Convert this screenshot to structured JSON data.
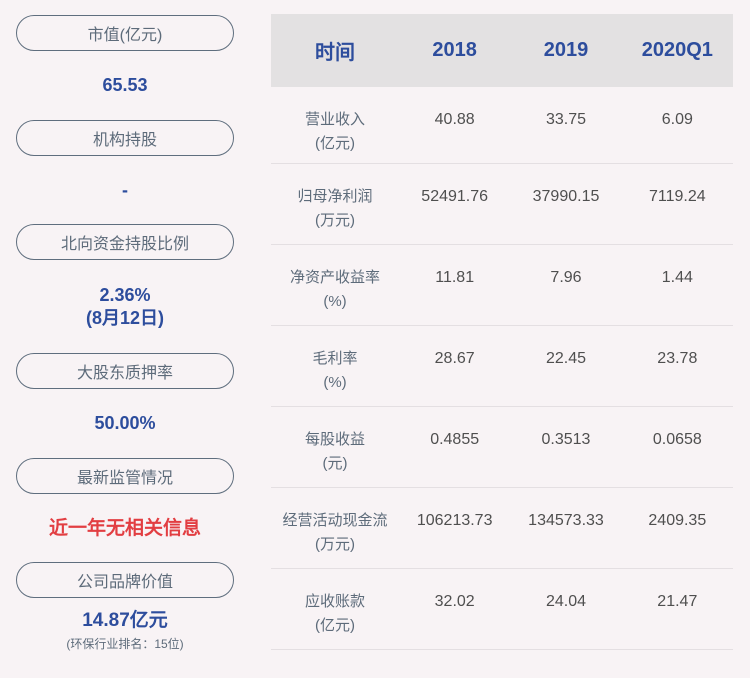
{
  "sidebar": {
    "items": [
      {
        "label": "市值(亿元)",
        "value": "65.53"
      },
      {
        "label": "机构持股",
        "value": "-"
      },
      {
        "label": "北向资金持股比例",
        "value": "2.36%",
        "value_line2": "(8月12日)"
      },
      {
        "label": "大股东质押率",
        "value": "50.00%"
      },
      {
        "label": "最新监管情况",
        "value": "近一年无相关信息"
      },
      {
        "label": "公司品牌价值",
        "value": "14.87亿元",
        "note": "(环保行业排名：15位)"
      }
    ]
  },
  "table": {
    "columns": [
      "时间",
      "2018",
      "2019",
      "2020Q1"
    ],
    "rows": [
      {
        "label": "营业收入",
        "unit": "(亿元)",
        "values": [
          "40.88",
          "33.75",
          "6.09"
        ]
      },
      {
        "label": "归母净利润",
        "unit": "(万元)",
        "values": [
          "52491.76",
          "37990.15",
          "7119.24"
        ]
      },
      {
        "label": "净资产收益率",
        "unit": "(%)",
        "values": [
          "11.81",
          "7.96",
          "1.44"
        ]
      },
      {
        "label": "毛利率",
        "unit": "(%)",
        "values": [
          "28.67",
          "22.45",
          "23.78"
        ]
      },
      {
        "label": "每股收益",
        "unit": "(元)",
        "values": [
          "0.4855",
          "0.3513",
          "0.0658"
        ]
      },
      {
        "label": "经营活动现金流",
        "unit": "(万元)",
        "values": [
          "106213.73",
          "134573.33",
          "2409.35"
        ]
      },
      {
        "label": "应收账款",
        "unit": "(亿元)",
        "values": [
          "32.02",
          "24.04",
          "21.47"
        ]
      }
    ]
  },
  "colors": {
    "accent_blue": "#2d4d9d",
    "alert_red": "#e23e42",
    "header_bg": "#e3e1e2",
    "page_bg": "#f8f3f5",
    "pill_border": "#5f6e7e"
  }
}
